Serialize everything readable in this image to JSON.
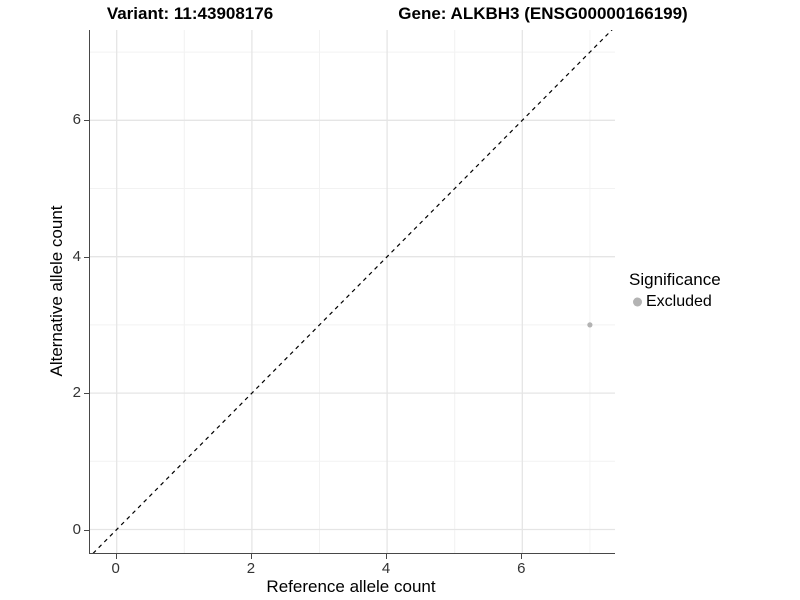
{
  "titles": {
    "variant": "Variant: 11:43908176",
    "gene": "Gene: ALKBH3 (ENSG00000166199)"
  },
  "chart_data": {
    "type": "scatter",
    "title_left": "Variant: 11:43908176",
    "title_right": "Gene: ALKBH3 (ENSG00000166199)",
    "xlabel": "Reference allele count",
    "ylabel": "Alternative allele count",
    "xlim": [
      -0.35,
      7.35
    ],
    "ylim": [
      -0.35,
      7.35
    ],
    "x_ticks": [
      0,
      2,
      4,
      6
    ],
    "y_ticks": [
      0,
      2,
      4,
      6
    ],
    "x_tick_labels": [
      "0",
      "2",
      "4",
      "6"
    ],
    "y_tick_labels": [
      "0",
      "2",
      "4",
      "6"
    ],
    "minor_gridlines": [
      1,
      3,
      5,
      7
    ],
    "grid": "major+minor",
    "legend_position": "right",
    "identity_line": {
      "style": "dashed",
      "color": "#000000",
      "from": [
        -0.35,
        -0.35
      ],
      "to": [
        7.35,
        7.35
      ]
    },
    "series": [
      {
        "name": "Excluded",
        "color": "#b3b3b3",
        "point_radius": 2.6,
        "points": [
          {
            "x": 7,
            "y": 3
          }
        ]
      }
    ],
    "legend": {
      "title": "Significance",
      "items": [
        {
          "label": "Excluded",
          "color": "#b3b3b3"
        }
      ]
    }
  },
  "colors": {
    "background": "#ffffff",
    "grid_major": "#e5e5e5",
    "grid_minor": "#f2f2f2",
    "axis_line": "#474747",
    "tick_text": "#333333",
    "title_text": "#000000",
    "point": "#b3b3b3",
    "identity_line": "#000000"
  }
}
